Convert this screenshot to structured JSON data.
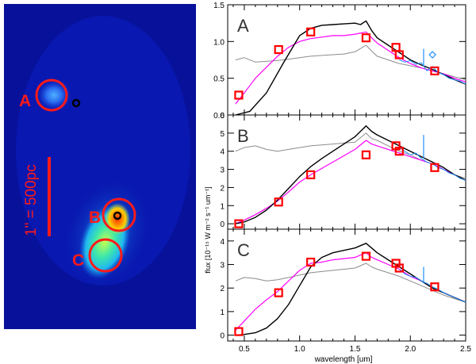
{
  "image_panel": {
    "scale_label": "1\" = 500pc",
    "regions": [
      "A",
      "B",
      "C"
    ]
  },
  "colors": {
    "marker": "#ff0000",
    "model_black": "#000000",
    "model_magenta": "#ff00ff",
    "model_gray": "#8c8c8c",
    "spectrum_blue": "#1e90ff"
  },
  "chart_data": [
    {
      "type": "line",
      "label": "A",
      "xlim": [
        0.35,
        2.5
      ],
      "ylim": [
        0,
        1.5
      ],
      "yticks": [
        0.0,
        0.5,
        1.0,
        1.5
      ],
      "ytick_labels": [
        "0.0",
        "0.5",
        "1.0",
        "1.5"
      ],
      "series": [
        {
          "name": "black",
          "color": "#000000",
          "x": [
            0.42,
            0.55,
            0.7,
            0.85,
            1.0,
            1.1,
            1.2,
            1.3,
            1.4,
            1.5,
            1.55,
            1.6,
            1.65,
            1.7,
            1.8,
            1.9,
            2.0,
            2.1,
            2.2,
            2.3,
            2.4,
            2.5
          ],
          "y": [
            0.0,
            0.05,
            0.3,
            0.7,
            1.08,
            1.18,
            1.22,
            1.23,
            1.24,
            1.25,
            1.23,
            1.28,
            1.15,
            1.05,
            0.95,
            0.85,
            0.75,
            0.68,
            0.62,
            0.55,
            0.48,
            0.42
          ]
        },
        {
          "name": "magenta",
          "color": "#ff00ff",
          "x": [
            0.42,
            0.5,
            0.6,
            0.7,
            0.8,
            0.9,
            1.0,
            1.1,
            1.2,
            1.3,
            1.4,
            1.5,
            1.6,
            1.65,
            1.7,
            1.8,
            1.9,
            2.0,
            2.1,
            2.2,
            2.3,
            2.4,
            2.5
          ],
          "y": [
            0.15,
            0.3,
            0.5,
            0.65,
            0.8,
            0.92,
            1.0,
            1.04,
            1.06,
            1.08,
            1.08,
            1.1,
            1.13,
            1.05,
            0.98,
            0.88,
            0.78,
            0.7,
            0.64,
            0.6,
            0.56,
            0.5,
            0.45
          ]
        },
        {
          "name": "gray",
          "color": "#8c8c8c",
          "x": [
            0.42,
            0.5,
            0.6,
            0.7,
            0.8,
            0.9,
            1.0,
            1.1,
            1.2,
            1.3,
            1.4,
            1.5,
            1.6,
            1.65,
            1.7,
            1.8,
            1.9,
            2.0,
            2.1,
            2.2,
            2.3,
            2.4,
            2.5
          ],
          "y": [
            0.75,
            0.78,
            0.72,
            0.73,
            0.74,
            0.76,
            0.78,
            0.8,
            0.81,
            0.82,
            0.83,
            0.86,
            0.95,
            0.87,
            0.8,
            0.75,
            0.7,
            0.67,
            0.64,
            0.6,
            0.56,
            0.52,
            0.48
          ]
        },
        {
          "name": "blue",
          "color": "#1e90ff",
          "x": [
            1.9,
            1.95,
            2.0,
            2.05,
            2.1,
            2.15,
            2.2,
            2.25,
            2.3,
            2.35,
            2.4,
            2.45,
            2.5
          ],
          "y": [
            0.75,
            0.72,
            0.74,
            0.69,
            0.71,
            0.6,
            0.66,
            0.58,
            0.55,
            0.5,
            0.48,
            0.46,
            0.42
          ]
        }
      ],
      "spike": {
        "x": 2.12,
        "y0": 0.68,
        "y1": 0.9
      },
      "markers": {
        "x": [
          0.45,
          0.81,
          1.1,
          1.6,
          1.87,
          1.9,
          2.22
        ],
        "y": [
          0.27,
          0.89,
          1.13,
          1.05,
          0.92,
          0.82,
          0.6
        ]
      },
      "diamond": {
        "x": 2.2,
        "y": 0.82
      }
    },
    {
      "type": "line",
      "label": "B",
      "xlim": [
        0.35,
        2.5
      ],
      "ylim": [
        -0.3,
        6
      ],
      "yticks": [
        0,
        1,
        2,
        3,
        4,
        5,
        6
      ],
      "ytick_labels": [
        "0",
        "1",
        "2",
        "3",
        "4",
        "5",
        "6"
      ],
      "series": [
        {
          "name": "black",
          "color": "#000000",
          "x": [
            0.42,
            0.5,
            0.6,
            0.7,
            0.8,
            0.9,
            1.0,
            1.1,
            1.2,
            1.3,
            1.4,
            1.5,
            1.6,
            1.65,
            1.7,
            1.8,
            1.9,
            2.0,
            2.1,
            2.2,
            2.3,
            2.4,
            2.5
          ],
          "y": [
            0.0,
            0.1,
            0.35,
            0.75,
            1.3,
            1.95,
            2.6,
            3.15,
            3.6,
            4.0,
            4.4,
            4.8,
            5.4,
            5.1,
            4.9,
            4.6,
            4.3,
            4.0,
            3.7,
            3.4,
            3.1,
            2.7,
            2.4
          ]
        },
        {
          "name": "magenta",
          "color": "#ff00ff",
          "x": [
            0.42,
            0.5,
            0.6,
            0.7,
            0.8,
            0.9,
            1.0,
            1.1,
            1.2,
            1.3,
            1.4,
            1.5,
            1.6,
            1.65,
            1.7,
            1.8,
            1.9,
            2.0,
            2.1,
            2.2,
            2.3,
            2.4,
            2.5
          ],
          "y": [
            0.0,
            0.2,
            0.5,
            0.85,
            1.25,
            1.75,
            2.3,
            2.7,
            3.05,
            3.4,
            3.75,
            4.1,
            4.6,
            4.4,
            4.3,
            4.1,
            3.9,
            3.7,
            3.5,
            3.3,
            3.0,
            2.7,
            2.4
          ]
        },
        {
          "name": "gray",
          "color": "#8c8c8c",
          "x": [
            0.42,
            0.5,
            0.6,
            0.7,
            0.8,
            0.9,
            1.0,
            1.1,
            1.2,
            1.3,
            1.4,
            1.5,
            1.6,
            1.65,
            1.7,
            1.8,
            1.9,
            2.0,
            2.1,
            2.2,
            2.3,
            2.4,
            2.5
          ],
          "y": [
            4.0,
            4.2,
            4.3,
            4.1,
            4.0,
            4.1,
            4.2,
            4.3,
            4.35,
            4.4,
            4.45,
            4.5,
            5.0,
            4.7,
            4.6,
            4.3,
            4.0,
            3.8,
            3.5,
            3.3,
            3.0,
            2.7,
            2.5
          ]
        },
        {
          "name": "blue",
          "color": "#1e90ff",
          "x": [
            1.9,
            1.95,
            2.0,
            2.05,
            2.1,
            2.15,
            2.2,
            2.25,
            2.3,
            2.35,
            2.4,
            2.45,
            2.5
          ],
          "y": [
            4.2,
            4.0,
            3.8,
            3.9,
            3.6,
            3.4,
            3.3,
            3.1,
            3.0,
            2.8,
            2.7,
            2.5,
            2.4
          ]
        }
      ],
      "spike": {
        "x": 2.12,
        "y0": 3.6,
        "y1": 4.9
      },
      "markers": {
        "x": [
          0.45,
          0.81,
          1.1,
          1.6,
          1.87,
          1.9,
          2.22
        ],
        "y": [
          0.0,
          1.2,
          2.7,
          3.8,
          4.3,
          4.0,
          3.1
        ]
      }
    },
    {
      "type": "line",
      "label": "C",
      "xlim": [
        0.35,
        2.5
      ],
      "ylim": [
        -0.25,
        4.5
      ],
      "yticks": [
        0,
        1,
        2,
        3,
        4
      ],
      "ytick_labels": [
        "0",
        "1",
        "2",
        "3",
        "4"
      ],
      "xticks": [
        0.5,
        1.0,
        1.5,
        2.0,
        2.5
      ],
      "xtick_labels": [
        "0.5",
        "1.0",
        "1.5",
        "2.0",
        "2.5"
      ],
      "series": [
        {
          "name": "black",
          "color": "#000000",
          "x": [
            0.42,
            0.5,
            0.6,
            0.7,
            0.8,
            0.9,
            1.0,
            1.1,
            1.2,
            1.3,
            1.4,
            1.5,
            1.6,
            1.65,
            1.7,
            1.8,
            1.9,
            2.0,
            2.1,
            2.2,
            2.3,
            2.4,
            2.5
          ],
          "y": [
            0.0,
            0.03,
            0.1,
            0.3,
            0.7,
            1.3,
            2.1,
            2.9,
            3.3,
            3.5,
            3.6,
            3.7,
            3.9,
            3.7,
            3.5,
            3.2,
            2.9,
            2.6,
            2.3,
            2.0,
            1.8,
            1.6,
            1.4
          ]
        },
        {
          "name": "magenta",
          "color": "#ff00ff",
          "x": [
            0.42,
            0.5,
            0.6,
            0.7,
            0.8,
            0.9,
            1.0,
            1.1,
            1.2,
            1.3,
            1.4,
            1.5,
            1.6,
            1.65,
            1.7,
            1.8,
            1.9,
            2.0,
            2.1,
            2.2,
            2.3,
            2.4,
            2.5
          ],
          "y": [
            0.2,
            0.6,
            1.1,
            1.5,
            1.85,
            2.3,
            2.75,
            3.05,
            3.1,
            3.2,
            3.25,
            3.3,
            3.5,
            3.3,
            3.2,
            3.0,
            2.8,
            2.5,
            2.3,
            2.0,
            1.8,
            1.6,
            1.4
          ]
        },
        {
          "name": "gray",
          "color": "#8c8c8c",
          "x": [
            0.42,
            0.5,
            0.6,
            0.7,
            0.8,
            0.9,
            1.0,
            1.1,
            1.2,
            1.3,
            1.4,
            1.5,
            1.6,
            1.65,
            1.7,
            1.8,
            1.9,
            2.0,
            2.1,
            2.2,
            2.3,
            2.4,
            2.5
          ],
          "y": [
            2.3,
            2.45,
            2.4,
            2.3,
            2.35,
            2.45,
            2.55,
            2.65,
            2.7,
            2.75,
            2.8,
            2.85,
            3.05,
            2.9,
            2.8,
            2.65,
            2.5,
            2.3,
            2.1,
            1.9,
            1.7,
            1.55,
            1.4
          ]
        },
        {
          "name": "blue",
          "color": "#1e90ff",
          "x": [
            1.9,
            1.95,
            2.0,
            2.05,
            2.1,
            2.15,
            2.2,
            2.25,
            2.3,
            2.35,
            2.4,
            2.45,
            2.5
          ],
          "y": [
            2.8,
            2.6,
            2.5,
            2.45,
            2.3,
            2.2,
            2.05,
            1.95,
            1.8,
            1.7,
            1.6,
            1.5,
            1.4
          ]
        }
      ],
      "spike": {
        "x": 2.12,
        "y0": 2.2,
        "y1": 2.9
      },
      "markers": {
        "x": [
          0.45,
          0.81,
          1.1,
          1.6,
          1.87,
          1.9,
          2.22
        ],
        "y": [
          0.15,
          1.8,
          3.1,
          3.35,
          3.05,
          2.85,
          2.05
        ]
      }
    }
  ],
  "axes": {
    "ylabel": "flux [10⁻¹⁵ W m⁻² s⁻¹ um⁻¹]",
    "xlabel": "wavelength [um]"
  }
}
